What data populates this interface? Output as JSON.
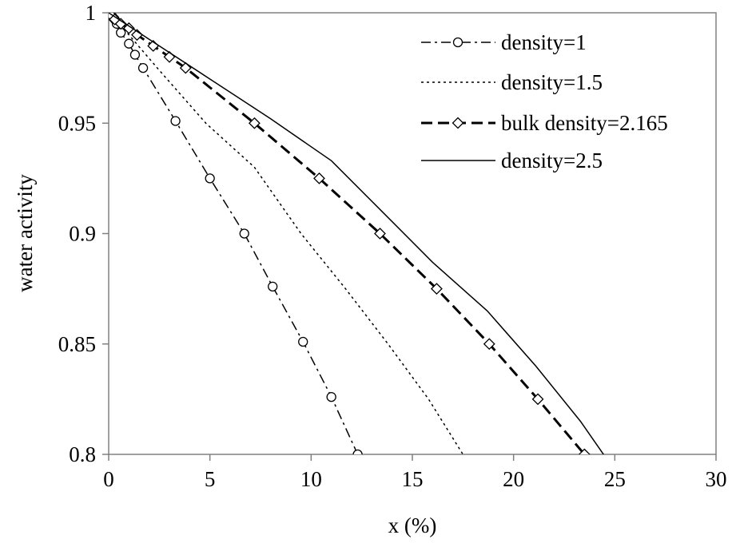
{
  "chart_data": {
    "type": "line",
    "xlabel": "x (%)",
    "ylabel": "water activity",
    "xlim": [
      0,
      30
    ],
    "ylim": [
      0.8,
      1.0
    ],
    "x_ticks": [
      "0",
      "5",
      "10",
      "15",
      "20",
      "25",
      "30"
    ],
    "y_ticks": [
      "0.8",
      "0.85",
      "0.9",
      "0.95",
      "1"
    ],
    "grid": false,
    "legend_position": "top-right",
    "series": [
      {
        "name": "density=1",
        "style": "dash-dot",
        "marker": "circle",
        "color": "#000000",
        "x": [
          0,
          0.05,
          0.1,
          0.2,
          0.3,
          0.4,
          0.6,
          1.0,
          1.3,
          1.7,
          3.3,
          5.0,
          6.7,
          8.1,
          9.6,
          11.0,
          12.3
        ],
        "y": [
          1.0,
          0.9995,
          0.999,
          0.998,
          0.997,
          0.995,
          0.991,
          0.986,
          0.981,
          0.975,
          0.951,
          0.925,
          0.9,
          0.876,
          0.851,
          0.826,
          0.8
        ]
      },
      {
        "name": "density=1.5",
        "style": "dotted",
        "marker": "none",
        "color": "#000000",
        "x": [
          0,
          1.0,
          2.4,
          4.8,
          7.2,
          9.5,
          11.7,
          13.8,
          15.8,
          17.5
        ],
        "y": [
          1.0,
          0.99,
          0.975,
          0.95,
          0.93,
          0.9,
          0.875,
          0.85,
          0.825,
          0.8
        ]
      },
      {
        "name": "bulk density=2.165",
        "style": "dashed",
        "marker": "diamond",
        "color": "#000000",
        "x": [
          0,
          0.1,
          0.3,
          0.6,
          1.0,
          1.4,
          2.2,
          3.0,
          3.8,
          7.2,
          10.4,
          13.4,
          16.2,
          18.8,
          21.2,
          23.5
        ],
        "y": [
          1.0,
          0.999,
          0.997,
          0.995,
          0.993,
          0.99,
          0.985,
          0.98,
          0.975,
          0.95,
          0.925,
          0.9,
          0.875,
          0.85,
          0.825,
          0.8
        ]
      },
      {
        "name": "density=2.5",
        "style": "solid",
        "marker": "none",
        "color": "#000000",
        "x": [
          0,
          2.0,
          5.0,
          8.0,
          11.0,
          13.5,
          16.0,
          18.7,
          21.1,
          23.3,
          25.2,
          26.3
        ],
        "y": [
          1.0,
          0.988,
          0.97,
          0.952,
          0.933,
          0.91,
          0.887,
          0.865,
          0.84,
          0.815,
          0.79,
          0.775
        ]
      }
    ]
  }
}
